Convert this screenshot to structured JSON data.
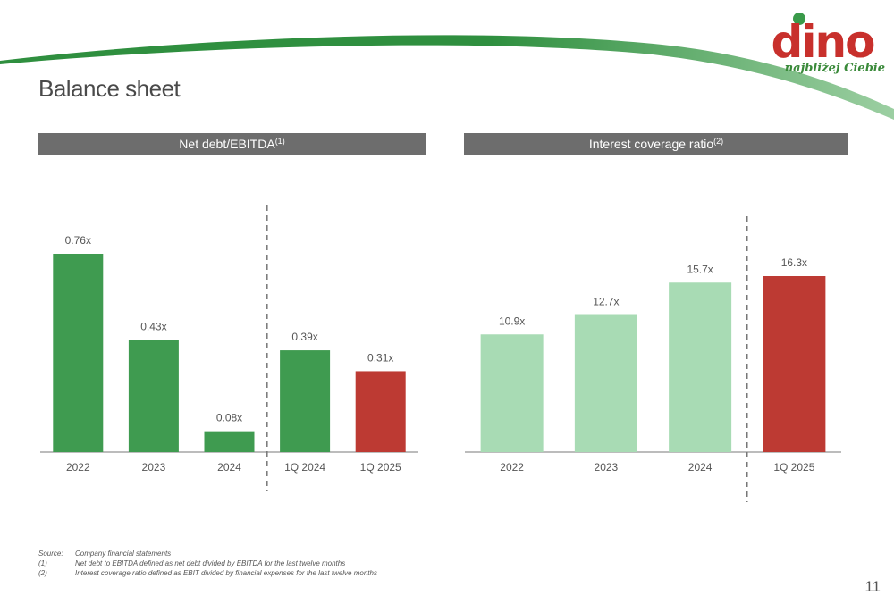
{
  "page": {
    "title": "Balance sheet",
    "number": "11"
  },
  "logo": {
    "wordmark": "dino",
    "tagline": "najbliżej Ciebie",
    "colors": {
      "wordmark": "#c8302c",
      "dot": "#3a9a4a",
      "tagline": "#3a8a3a"
    }
  },
  "colors": {
    "dark_green": "#3f9b50",
    "light_green": "#a8dbb4",
    "red": "#bd3a33",
    "header_bg": "#6d6d6d"
  },
  "panels": [
    {
      "header": "Net debt/EBITDA",
      "footnote_ref": "(1)"
    },
    {
      "header": "Interest coverage ratio",
      "footnote_ref": "(2)"
    }
  ],
  "chart_data": [
    {
      "type": "bar",
      "title": "Net debt/EBITDA(1)",
      "categories": [
        "2022",
        "2023",
        "2024",
        "1Q 2024",
        "1Q 2025"
      ],
      "values": [
        0.76,
        0.43,
        0.08,
        0.39,
        0.31
      ],
      "value_labels": [
        "0.76x",
        "0.43x",
        "0.08x",
        "0.39x",
        "0.31x"
      ],
      "bar_colors": [
        "#3f9b50",
        "#3f9b50",
        "#3f9b50",
        "#3f9b50",
        "#bd3a33"
      ],
      "divider_after_index": 2,
      "ylim": [
        0,
        0.76
      ]
    },
    {
      "type": "bar",
      "title": "Interest coverage ratio(2)",
      "categories": [
        "2022",
        "2023",
        "2024",
        "1Q 2025"
      ],
      "values": [
        10.9,
        12.7,
        15.7,
        16.3
      ],
      "value_labels": [
        "10.9x",
        "12.7x",
        "15.7x",
        "16.3x"
      ],
      "bar_colors": [
        "#a8dbb4",
        "#a8dbb4",
        "#a8dbb4",
        "#bd3a33"
      ],
      "divider_after_index": 2,
      "ylim": [
        0,
        16.3
      ]
    }
  ],
  "footnotes": [
    {
      "key": "Source:",
      "text": "Company financial statements"
    },
    {
      "key": "(1)",
      "text": "Net debt to EBITDA defined as net debt divided by EBITDA for the last twelve months"
    },
    {
      "key": "(2)",
      "text": "Interest coverage ratio defined as EBIT divided by financial expenses for the last twelve months"
    }
  ]
}
